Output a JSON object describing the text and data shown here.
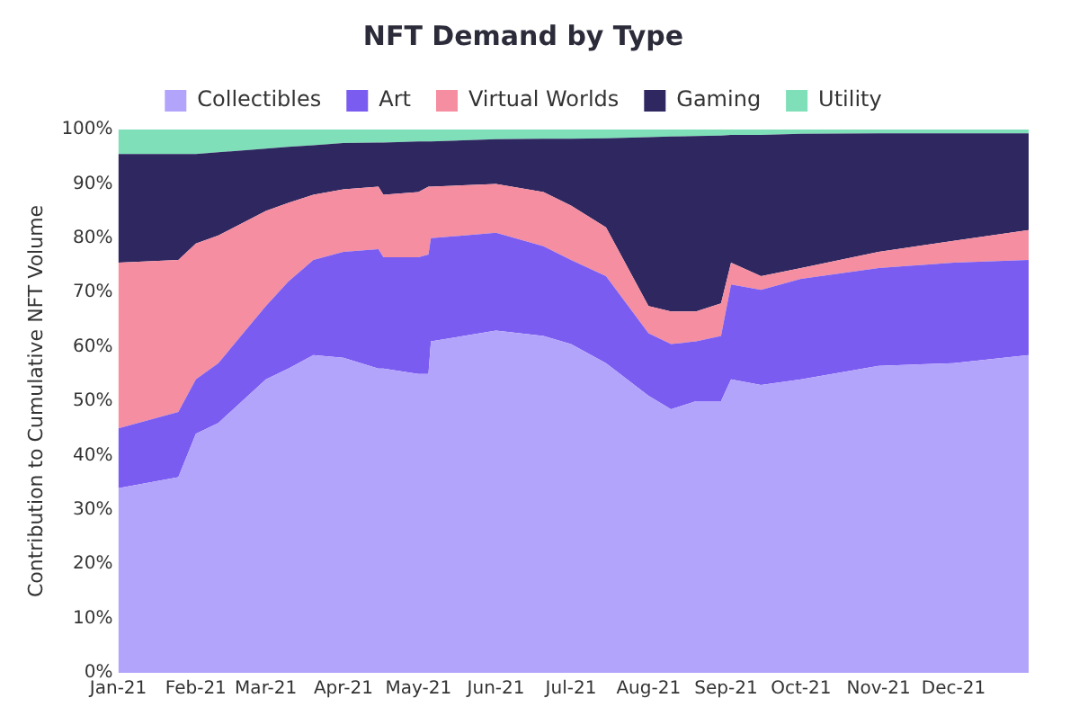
{
  "chart_data": {
    "type": "area",
    "stacked": true,
    "title": "NFT Demand by Type",
    "ylabel": "Contribution to Cumulative NFT Volume",
    "legend": "top",
    "grid": false,
    "marker": "none",
    "x": [
      "2021-01-01",
      "2021-01-25",
      "2021-02-01",
      "2021-02-10",
      "2021-03-01",
      "2021-03-10",
      "2021-03-20",
      "2021-04-01",
      "2021-04-15",
      "2021-04-17",
      "2021-05-01",
      "2021-05-05",
      "2021-05-06",
      "2021-06-01",
      "2021-06-20",
      "2021-07-01",
      "2021-07-15",
      "2021-08-01",
      "2021-08-10",
      "2021-08-20",
      "2021-08-30",
      "2021-09-03",
      "2021-09-15",
      "2021-10-01",
      "2021-11-01",
      "2021-12-01",
      "2021-12-31"
    ],
    "xlim": [
      "2021-01-01",
      "2021-12-31"
    ],
    "xticks": [
      {
        "value": "2021-01-01",
        "label": "Jan-21"
      },
      {
        "value": "2021-02-01",
        "label": "Feb-21"
      },
      {
        "value": "2021-03-01",
        "label": "Mar-21"
      },
      {
        "value": "2021-04-01",
        "label": "Apr-21"
      },
      {
        "value": "2021-05-01",
        "label": "May-21"
      },
      {
        "value": "2021-06-01",
        "label": "Jun-21"
      },
      {
        "value": "2021-07-01",
        "label": "Jul-21"
      },
      {
        "value": "2021-08-01",
        "label": "Aug-21"
      },
      {
        "value": "2021-09-01",
        "label": "Sep-21"
      },
      {
        "value": "2021-10-01",
        "label": "Oct-21"
      },
      {
        "value": "2021-11-01",
        "label": "Nov-21"
      },
      {
        "value": "2021-12-01",
        "label": "Dec-21"
      }
    ],
    "ylim": [
      0,
      100
    ],
    "yticks": [
      {
        "value": 0,
        "label": "0%"
      },
      {
        "value": 10,
        "label": "10%"
      },
      {
        "value": 20,
        "label": "20%"
      },
      {
        "value": 30,
        "label": "30%"
      },
      {
        "value": 40,
        "label": "40%"
      },
      {
        "value": 50,
        "label": "50%"
      },
      {
        "value": 60,
        "label": "60%"
      },
      {
        "value": 70,
        "label": "70%"
      },
      {
        "value": 80,
        "label": "80%"
      },
      {
        "value": 90,
        "label": "90%"
      },
      {
        "value": 100,
        "label": "100%"
      }
    ],
    "series": [
      {
        "name": "Collectibles",
        "color": "#b3a4fb",
        "values": [
          34,
          36,
          44,
          46,
          54,
          56,
          58.5,
          58,
          56,
          56,
          55,
          55,
          61,
          63,
          62,
          60.5,
          57,
          51,
          48.5,
          50,
          50,
          54,
          53,
          54,
          56.5,
          57,
          58.5
        ]
      },
      {
        "name": "Art",
        "color": "#7b5cf0",
        "values": [
          11,
          12,
          10,
          11,
          13.5,
          16,
          17.5,
          19.5,
          22,
          20.5,
          21.5,
          22,
          19,
          18,
          16.5,
          15.5,
          16,
          11.5,
          12,
          11,
          12,
          17.5,
          17.5,
          18.5,
          18,
          18.5,
          17.5
        ]
      },
      {
        "name": "Virtual Worlds",
        "color": "#f58ea0",
        "values": [
          30.5,
          28,
          25,
          23.5,
          17.5,
          14.5,
          12,
          11.5,
          11.5,
          11.5,
          12,
          12.5,
          9.5,
          9,
          10,
          10,
          9,
          5,
          6,
          5.5,
          6,
          4,
          2.5,
          2,
          3,
          4,
          5.5
        ]
      },
      {
        "name": "Gaming",
        "color": "#2e2760",
        "values": [
          20,
          19.5,
          16.5,
          15.3,
          11.5,
          10.3,
          9.1,
          8.5,
          8.1,
          9.6,
          9.3,
          8.3,
          8.3,
          8.2,
          9.8,
          12.3,
          16.4,
          31.1,
          32.2,
          32.3,
          30.9,
          23.5,
          26,
          24.7,
          21.8,
          19.8,
          17.8
        ]
      },
      {
        "name": "Utility",
        "color": "#7fdfb8",
        "values": [
          4.5,
          4.5,
          4.5,
          4.2,
          3.5,
          3.2,
          2.9,
          2.5,
          2.4,
          2.4,
          2.2,
          2.2,
          2.2,
          1.8,
          1.7,
          1.7,
          1.6,
          1.4,
          1.3,
          1.2,
          1.1,
          1,
          1,
          0.8,
          0.7,
          0.7,
          0.7
        ]
      }
    ]
  }
}
